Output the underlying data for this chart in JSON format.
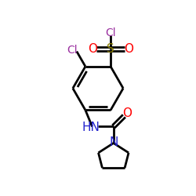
{
  "bg_color": "#ffffff",
  "bond_color": "#000000",
  "bond_lw": 2.0,
  "atom_colors": {
    "Cl_sulfonyl": "#9b30a0",
    "S": "#8b8000",
    "O": "#ff0000",
    "Cl_ring": "#9b30a0",
    "N_amide": "#2222cc",
    "N_pyrr": "#2222cc"
  }
}
